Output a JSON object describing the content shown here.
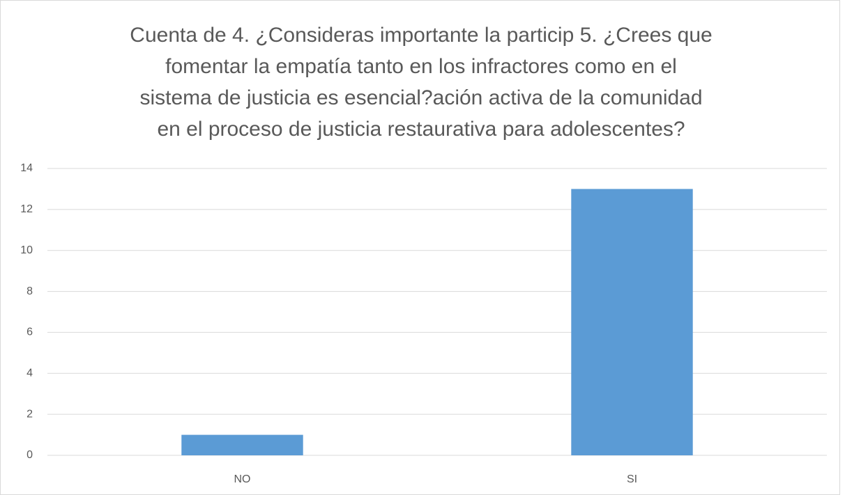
{
  "chart_data": {
    "type": "bar",
    "title": [
      "Cuenta de  4. ¿Consideras importante la particip 5. ¿Crees que",
      "fomentar la empatía tanto en los infractores como en el",
      "sistema de justicia es esencial?ación activa de la comunidad",
      "en el proceso de justicia restaurativa para adolescentes?"
    ],
    "categories": [
      "NO",
      "SI"
    ],
    "values": [
      1,
      13
    ],
    "color": "#5b9bd5",
    "ylim": [
      0,
      14
    ],
    "yticks": [
      0,
      2,
      4,
      6,
      8,
      10,
      12,
      14
    ],
    "grid": true
  }
}
